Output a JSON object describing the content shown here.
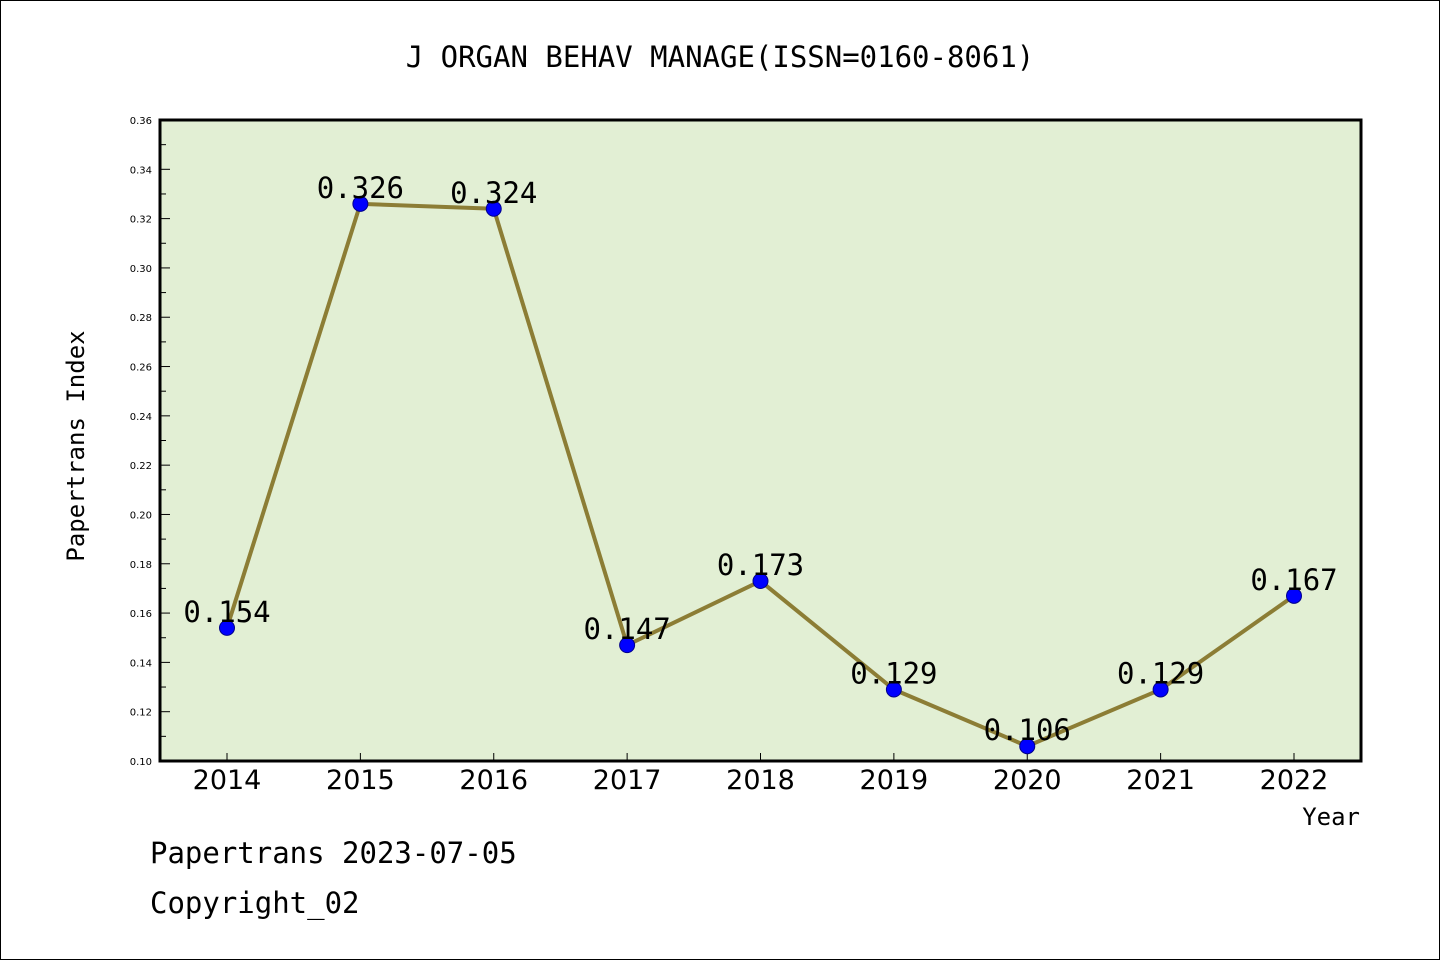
{
  "chart_data": {
    "type": "line",
    "title": "J ORGAN BEHAV MANAGE(ISSN=0160-8061)",
    "xlabel": "Year",
    "ylabel": "Papertrans Index",
    "categories": [
      "2014",
      "2015",
      "2016",
      "2017",
      "2018",
      "2019",
      "2020",
      "2021",
      "2022"
    ],
    "values": [
      0.154,
      0.326,
      0.324,
      0.147,
      0.173,
      0.129,
      0.106,
      0.129,
      0.167
    ],
    "data_labels": [
      "0.154",
      "0.326",
      "0.324",
      "0.147",
      "0.173",
      "0.129",
      "0.106",
      "0.129",
      "0.167"
    ],
    "ylim": [
      0.1,
      0.36
    ],
    "yticks": [
      "0.10",
      "0.12",
      "0.14",
      "0.16",
      "0.18",
      "0.20",
      "0.22",
      "0.24",
      "0.26",
      "0.28",
      "0.30",
      "0.32",
      "0.34",
      "0.36"
    ],
    "grid": false,
    "colors": {
      "plot_background": "#e2efd4",
      "line": "#8c7d35",
      "marker": "#0000ff"
    }
  },
  "footer": {
    "date_line": "Papertrans 2023-07-05",
    "copyright": "Copyright_02"
  }
}
